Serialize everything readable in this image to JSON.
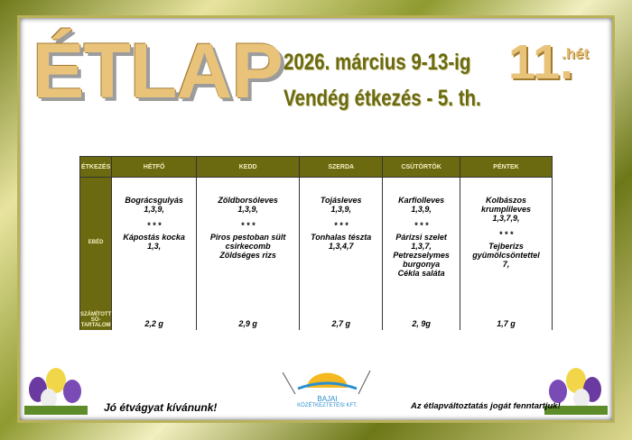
{
  "header": {
    "title": "ÉTLAP",
    "date": "2026. március 9-13-ig",
    "subtitle": "Vendég étkezés - 5. th.",
    "week_number": "11.",
    "week_suffix": ".hét"
  },
  "table": {
    "columns": [
      "ÉTKEZÉS",
      "HÉTFŐ",
      "KEDD",
      "SZERDA",
      "CSÜTÖRTÖK",
      "PÉNTEK"
    ],
    "rows": [
      {
        "label": [
          "EBÉD"
        ],
        "cells": [
          [
            "Bográcsgulyás",
            "1,3,9,",
            "* * *",
            "Kápostás kocka",
            "1,3,"
          ],
          [
            "Zöldborsóleves",
            "1,3,9,",
            "* * *",
            "Piros pestoban sült",
            "csirkecomb",
            "Zöldséges rizs"
          ],
          [
            "Tojásleves",
            "1,3,9,",
            "* * *",
            "Tonhalas tészta",
            "1,3,4,7"
          ],
          [
            "Karfiolleves",
            "1,3,9,",
            "* * *",
            "Párizsi szelet",
            "1,3,7,",
            "Petrezselymes",
            "burgonya",
            "Cékla saláta"
          ],
          [
            "Kolbászos",
            "krumplileves",
            "1,3,7,9,",
            "* * *",
            "Tejberizs",
            "gyümölcsöntettel",
            "7,"
          ]
        ]
      },
      {
        "label": [
          "SZÁMÍTOTT",
          "SÓ-",
          "TARTALOM"
        ],
        "cells": [
          [
            "2,2 g"
          ],
          [
            "2,9 g"
          ],
          [
            "2,7 g"
          ],
          [
            "2, 9g"
          ],
          [
            "1,7 g"
          ]
        ]
      }
    ]
  },
  "footer": {
    "left": "Jó étvágyat kívánunk!",
    "logo_name": "BAJAI",
    "logo_company": "KÖZÉTKEZTETÉSI KFT.",
    "right": "Az étlapváltoztatás jogát fenntartjuk!"
  }
}
